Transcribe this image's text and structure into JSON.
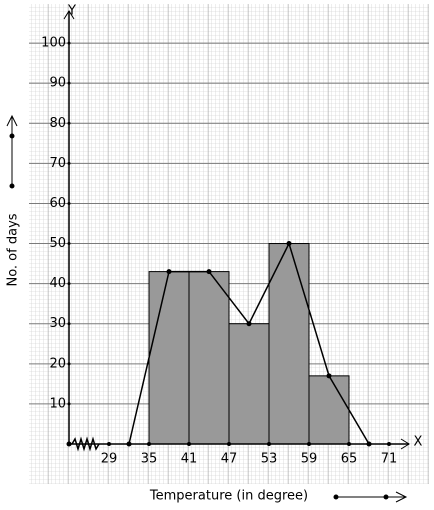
{
  "chart_data": {
    "type": "histogram",
    "x_axis_name": "X",
    "y_axis_name": "Y",
    "xlabel": "Temperature (in degree)",
    "ylabel": "No. of days",
    "bins": [
      35,
      41,
      47,
      53,
      59,
      65
    ],
    "counts": [
      43,
      43,
      30,
      50,
      17
    ],
    "color": "#999999",
    "polygon": {
      "x": [
        32,
        38,
        44,
        50,
        56,
        62,
        68
      ],
      "values": [
        0,
        43,
        43,
        30,
        50,
        17,
        0
      ],
      "color": "#000000"
    },
    "xlim": [
      23,
      74
    ],
    "ylim": [
      0,
      108
    ],
    "xticks": [
      29,
      35,
      41,
      47,
      53,
      59,
      65,
      71
    ],
    "yticks": [
      10,
      20,
      30,
      40,
      50,
      60,
      70,
      80,
      90,
      100
    ],
    "grid": true
  }
}
